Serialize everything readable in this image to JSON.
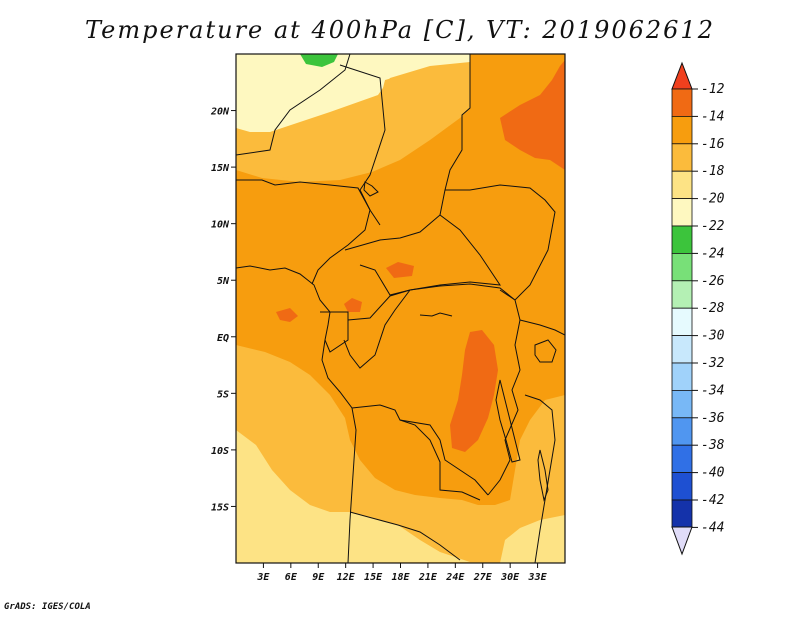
{
  "title": "Temperature at 400hPa [C], VT: 2019062612",
  "credit": "GrADS: IGES/COLA",
  "map": {
    "lon_range": [
      0,
      36
    ],
    "lat_range": [
      -20,
      25
    ],
    "x_ticks": [
      "3E",
      "6E",
      "9E",
      "12E",
      "15E",
      "18E",
      "21E",
      "24E",
      "27E",
      "30E",
      "33E"
    ],
    "y_ticks": [
      "20N",
      "15N",
      "10N",
      "5N",
      "EQ",
      "5S",
      "10S",
      "15S"
    ],
    "fill_colors": {
      "t_-12_-14": "#f06a14",
      "t_-14_-16": "#f79d0e",
      "t_-16_-18": "#fbbb3c",
      "t_-18_-20": "#fde385",
      "t_-20_-22": "#fef8c0",
      "t_-22_-24": "#3cc43c"
    }
  },
  "colorbar": {
    "levels": [
      "-12",
      "-14",
      "-16",
      "-18",
      "-20",
      "-22",
      "-24",
      "-26",
      "-28",
      "-30",
      "-32",
      "-34",
      "-36",
      "-38",
      "-40",
      "-42",
      "-44"
    ],
    "top_arrow_color": "#f0401e",
    "bottom_arrow_color": "#e0dcf8",
    "colors": [
      "#f06a14",
      "#f79d0e",
      "#fbbb3c",
      "#fde385",
      "#fef8c0",
      "#3cc43c",
      "#78e078",
      "#b4f0b4",
      "#e6fafe",
      "#c8e8fc",
      "#a0d2fa",
      "#78b8f6",
      "#5096f0",
      "#3070e6",
      "#1e50d2",
      "#1432aa",
      "#0a1478"
    ]
  }
}
